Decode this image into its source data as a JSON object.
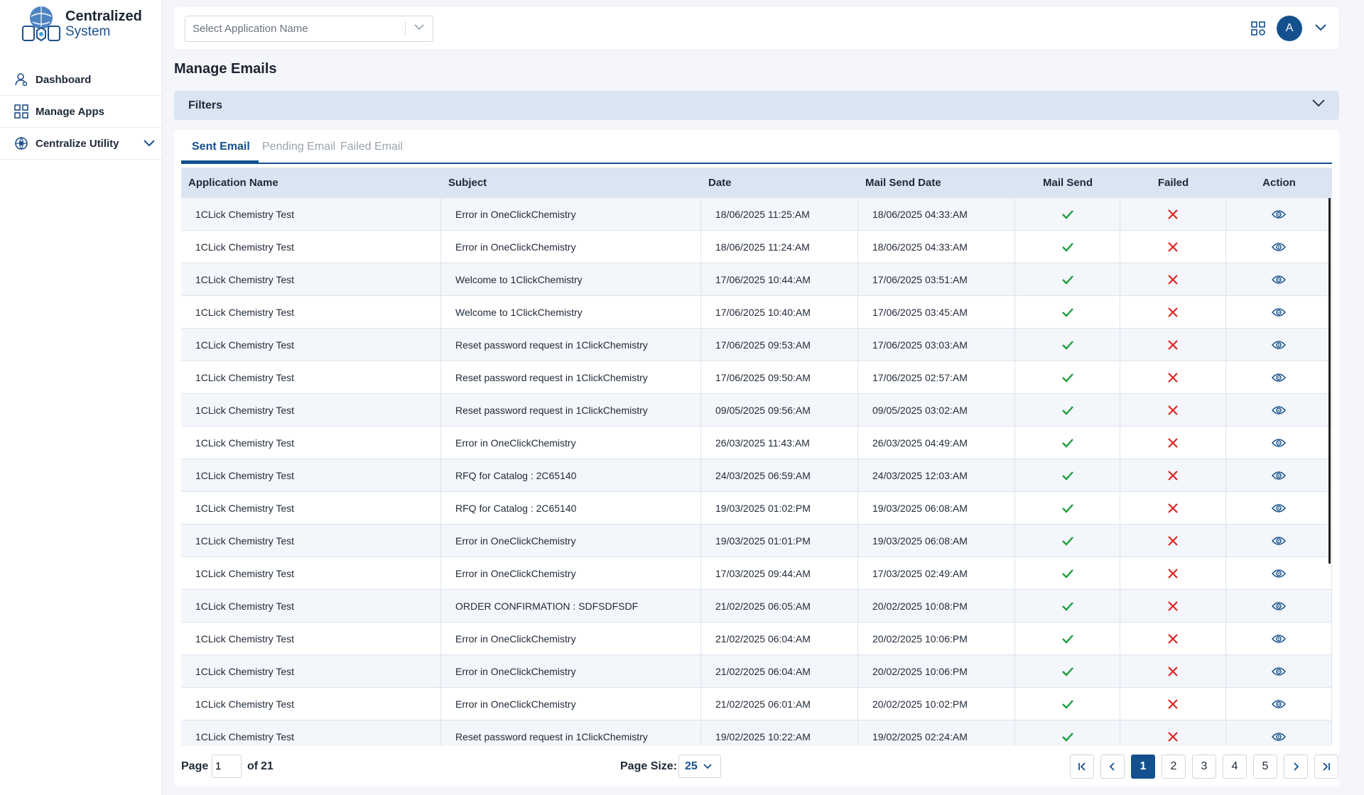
{
  "app": {
    "name_line1": "Centralized",
    "name_line2": "System"
  },
  "sidebar": {
    "items": [
      {
        "label": "Dashboard",
        "icon": "user-icon"
      },
      {
        "label": "Manage Apps",
        "icon": "apps-grid-icon"
      },
      {
        "label": "Centralize Utility",
        "icon": "globe-gear-icon"
      }
    ]
  },
  "topbar": {
    "app_select_placeholder": "Select Application Name",
    "avatar_letter": "A"
  },
  "page": {
    "title": "Manage Emails",
    "filters_label": "Filters"
  },
  "tabs": [
    "Sent Email",
    "Pending Email",
    "Failed Email"
  ],
  "table": {
    "headers": [
      "Application Name",
      "Subject",
      "Date",
      "Mail Send Date",
      "Mail Send",
      "Failed",
      "Action"
    ],
    "rows": [
      {
        "app": "1CLick Chemistry Test",
        "subject": "Error in OneClickChemistry",
        "date": "18/06/2025 11:25:AM",
        "send_date": "18/06/2025 04:33:AM"
      },
      {
        "app": "1CLick Chemistry Test",
        "subject": "Error in OneClickChemistry",
        "date": "18/06/2025 11:24:AM",
        "send_date": "18/06/2025 04:33:AM"
      },
      {
        "app": "1CLick Chemistry Test",
        "subject": "Welcome to 1ClickChemistry",
        "date": "17/06/2025 10:44:AM",
        "send_date": "17/06/2025 03:51:AM"
      },
      {
        "app": "1CLick Chemistry Test",
        "subject": "Welcome to 1ClickChemistry",
        "date": "17/06/2025 10:40:AM",
        "send_date": "17/06/2025 03:45:AM"
      },
      {
        "app": "1CLick Chemistry Test",
        "subject": "Reset password request in 1ClickChemistry",
        "date": "17/06/2025 09:53:AM",
        "send_date": "17/06/2025 03:03:AM"
      },
      {
        "app": "1CLick Chemistry Test",
        "subject": "Reset password request in 1ClickChemistry",
        "date": "17/06/2025 09:50:AM",
        "send_date": "17/06/2025 02:57:AM"
      },
      {
        "app": "1CLick Chemistry Test",
        "subject": "Reset password request in 1ClickChemistry",
        "date": "09/05/2025 09:56:AM",
        "send_date": "09/05/2025 03:02:AM"
      },
      {
        "app": "1CLick Chemistry Test",
        "subject": "Error in OneClickChemistry",
        "date": "26/03/2025 11:43:AM",
        "send_date": "26/03/2025 04:49:AM"
      },
      {
        "app": "1CLick Chemistry Test",
        "subject": "RFQ for Catalog : 2C65140",
        "date": "24/03/2025 06:59:AM",
        "send_date": "24/03/2025 12:03:AM"
      },
      {
        "app": "1CLick Chemistry Test",
        "subject": "RFQ for Catalog : 2C65140",
        "date": "19/03/2025 01:02:PM",
        "send_date": "19/03/2025 06:08:AM"
      },
      {
        "app": "1CLick Chemistry Test",
        "subject": "Error in OneClickChemistry",
        "date": "19/03/2025 01:01:PM",
        "send_date": "19/03/2025 06:08:AM"
      },
      {
        "app": "1CLick Chemistry Test",
        "subject": "Error in OneClickChemistry",
        "date": "17/03/2025 09:44:AM",
        "send_date": "17/03/2025 02:49:AM"
      },
      {
        "app": "1CLick Chemistry Test",
        "subject": "ORDER CONFIRMATION : SDFSDFSDF",
        "date": "21/02/2025 06:05:AM",
        "send_date": "20/02/2025 10:08:PM"
      },
      {
        "app": "1CLick Chemistry Test",
        "subject": "Error in OneClickChemistry",
        "date": "21/02/2025 06:04:AM",
        "send_date": "20/02/2025 10:06:PM"
      },
      {
        "app": "1CLick Chemistry Test",
        "subject": "Error in OneClickChemistry",
        "date": "21/02/2025 06:04:AM",
        "send_date": "20/02/2025 10:06:PM"
      },
      {
        "app": "1CLick Chemistry Test",
        "subject": "Error in OneClickChemistry",
        "date": "21/02/2025 06:01:AM",
        "send_date": "20/02/2025 10:02:PM"
      },
      {
        "app": "1CLick Chemistry Test",
        "subject": "Reset password request in 1ClickChemistry",
        "date": "19/02/2025 10:22:AM",
        "send_date": "19/02/2025 02:24:AM"
      }
    ]
  },
  "pager": {
    "page_label": "Page",
    "current_page": "1",
    "of_label": "of",
    "total_pages": "21",
    "page_size_label": "Page Size:",
    "page_size": "25",
    "pages": [
      "1",
      "2",
      "3",
      "4",
      "5"
    ]
  },
  "colors": {
    "primary": "#14508e",
    "check": "#1f9d3a",
    "cross": "#e02424",
    "header_bg": "#dbe5f2"
  }
}
